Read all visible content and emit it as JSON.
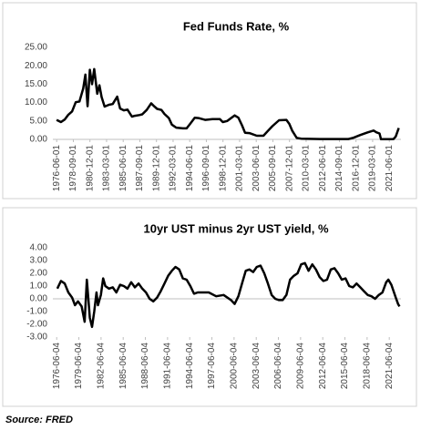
{
  "chart_data": [
    {
      "type": "line",
      "title": "Fed Funds Rate, %",
      "color": "#000000",
      "grid": false,
      "x": [
        1976.4,
        1977.0,
        1977.5,
        1978.0,
        1978.5,
        1979.0,
        1979.5,
        1980.0,
        1980.3,
        1980.6,
        1980.9,
        1981.2,
        1981.5,
        1981.9,
        1982.2,
        1982.5,
        1982.9,
        1983.5,
        1984.0,
        1984.6,
        1985.0,
        1985.5,
        1986.0,
        1986.6,
        1987.0,
        1987.6,
        1988.0,
        1988.6,
        1989.2,
        1989.6,
        1990.0,
        1990.6,
        1991.0,
        1991.6,
        1992.0,
        1992.6,
        1993.5,
        1994.0,
        1994.5,
        1995.1,
        1995.6,
        1996.5,
        1997.5,
        1998.5,
        1998.9,
        1999.5,
        2000.5,
        2001.0,
        2001.5,
        2001.9,
        2002.5,
        2003.5,
        2004.4,
        2005.0,
        2005.6,
        2006.5,
        2007.5,
        2007.9,
        2008.3,
        2008.9,
        2009.5,
        2012.0,
        2015.9,
        2016.5,
        2017.5,
        2018.5,
        2019.3,
        2019.7,
        2020.1,
        2020.3,
        2021.5,
        2022.0,
        2022.3,
        2022.7
      ],
      "values": [
        5.3,
        4.7,
        5.4,
        6.7,
        7.6,
        10.1,
        10.3,
        13.8,
        17.6,
        9.0,
        18.9,
        15.0,
        19.1,
        12.4,
        14.7,
        11.5,
        8.9,
        9.4,
        9.6,
        11.6,
        8.4,
        7.9,
        8.1,
        6.2,
        6.4,
        6.6,
        6.8,
        8.0,
        9.8,
        9.0,
        8.3,
        8.0,
        6.9,
        5.8,
        4.0,
        3.2,
        3.0,
        3.0,
        4.3,
        5.9,
        5.8,
        5.3,
        5.5,
        5.5,
        4.7,
        5.0,
        6.5,
        5.9,
        3.8,
        1.8,
        1.7,
        1.0,
        1.0,
        2.3,
        3.6,
        5.2,
        5.3,
        4.2,
        2.3,
        0.4,
        0.2,
        0.1,
        0.1,
        0.4,
        1.2,
        1.9,
        2.4,
        1.9,
        1.6,
        0.05,
        0.08,
        0.1,
        0.8,
        3.1
      ],
      "xlim": [
        1975.9,
        2023.0
      ],
      "xticks": [
        {
          "value": 1976.42,
          "label": "1976-06-01"
        },
        {
          "value": 1978.67,
          "label": "1978-09-01"
        },
        {
          "value": 1980.92,
          "label": "1980-12-01"
        },
        {
          "value": 1983.17,
          "label": "1983-03-01"
        },
        {
          "value": 1985.42,
          "label": "1985-06-01"
        },
        {
          "value": 1987.67,
          "label": "1987-09-01"
        },
        {
          "value": 1989.92,
          "label": "1989-12-01"
        },
        {
          "value": 1992.17,
          "label": "1992-03-01"
        },
        {
          "value": 1994.42,
          "label": "1994-06-01"
        },
        {
          "value": 1996.67,
          "label": "1996-09-01"
        },
        {
          "value": 1998.92,
          "label": "1998-12-01"
        },
        {
          "value": 2001.17,
          "label": "2001-03-01"
        },
        {
          "value": 2003.42,
          "label": "2003-06-01"
        },
        {
          "value": 2005.67,
          "label": "2005-09-01"
        },
        {
          "value": 2007.92,
          "label": "2007-12-01"
        },
        {
          "value": 2010.17,
          "label": "2010-03-01"
        },
        {
          "value": 2012.42,
          "label": "2012-06-01"
        },
        {
          "value": 2014.67,
          "label": "2014-09-01"
        },
        {
          "value": 2016.92,
          "label": "2016-12-01"
        },
        {
          "value": 2019.17,
          "label": "2019-03-01"
        },
        {
          "value": 2021.42,
          "label": "2021-06-01"
        }
      ],
      "ylim": [
        0,
        25
      ],
      "yticks": [
        {
          "value": 0,
          "label": "0.00"
        },
        {
          "value": 5,
          "label": "5.00"
        },
        {
          "value": 10,
          "label": "10.00"
        },
        {
          "value": 15,
          "label": "15.00"
        },
        {
          "value": 20,
          "label": "20.00"
        },
        {
          "value": 25,
          "label": "25.00"
        }
      ]
    },
    {
      "type": "line",
      "title": "10yr UST minus 2yr UST yield, %",
      "color": "#000000",
      "grid": false,
      "x": [
        1976.5,
        1977.0,
        1977.5,
        1978.0,
        1978.5,
        1978.9,
        1979.3,
        1979.8,
        1980.2,
        1980.5,
        1980.9,
        1981.2,
        1981.5,
        1981.8,
        1982.0,
        1982.4,
        1982.7,
        1983.0,
        1983.5,
        1984.0,
        1984.5,
        1985.0,
        1985.5,
        1986.0,
        1986.5,
        1987.0,
        1987.5,
        1988.0,
        1988.5,
        1989.0,
        1989.5,
        1990.0,
        1990.5,
        1991.0,
        1991.5,
        1992.0,
        1992.5,
        1993.0,
        1993.5,
        1994.0,
        1994.5,
        1995.0,
        1995.5,
        1996.0,
        1997.0,
        1998.0,
        1999.0,
        2000.0,
        2000.5,
        2001.0,
        2001.5,
        2002.0,
        2002.5,
        2003.0,
        2003.5,
        2004.0,
        2004.5,
        2005.0,
        2005.5,
        2006.0,
        2006.5,
        2007.0,
        2007.5,
        2008.0,
        2008.5,
        2009.0,
        2009.5,
        2010.0,
        2010.5,
        2011.0,
        2011.5,
        2012.0,
        2012.5,
        2013.0,
        2013.5,
        2014.0,
        2014.5,
        2015.0,
        2015.5,
        2016.0,
        2016.5,
        2017.0,
        2017.5,
        2018.0,
        2018.5,
        2019.0,
        2019.5,
        2020.0,
        2020.5,
        2021.0,
        2021.3,
        2021.7,
        2022.0,
        2022.3,
        2022.6,
        2022.8
      ],
      "values": [
        0.8,
        1.4,
        1.2,
        0.5,
        0.1,
        -0.5,
        -0.2,
        -0.6,
        -1.8,
        1.5,
        -1.5,
        -2.2,
        -1.0,
        0.5,
        -0.5,
        0.3,
        1.6,
        1.0,
        0.8,
        0.9,
        0.5,
        1.1,
        1.0,
        0.8,
        1.3,
        0.9,
        1.2,
        0.8,
        0.5,
        0.0,
        -0.2,
        0.1,
        0.6,
        1.2,
        1.8,
        2.2,
        2.5,
        2.3,
        1.6,
        1.5,
        1.0,
        0.4,
        0.5,
        0.5,
        0.5,
        0.2,
        0.3,
        -0.1,
        -0.4,
        0.2,
        1.2,
        2.2,
        2.3,
        2.1,
        2.5,
        2.6,
        2.0,
        1.2,
        0.3,
        0.0,
        -0.1,
        -0.1,
        0.3,
        1.5,
        1.8,
        2.0,
        2.7,
        2.8,
        2.2,
        2.7,
        2.3,
        1.7,
        1.4,
        1.5,
        2.3,
        2.4,
        2.0,
        1.5,
        1.6,
        1.0,
        0.9,
        1.2,
        0.9,
        0.6,
        0.3,
        0.2,
        0.0,
        0.3,
        0.5,
        1.3,
        1.5,
        1.1,
        0.6,
        0.1,
        -0.4,
        -0.6
      ],
      "xlim": [
        1975.9,
        2023.0
      ],
      "xticks": [
        {
          "value": 1976.42,
          "label": "1976-06-04"
        },
        {
          "value": 1979.42,
          "label": "1979-06-04"
        },
        {
          "value": 1982.42,
          "label": "1982-06-04"
        },
        {
          "value": 1985.42,
          "label": "1985-06-04"
        },
        {
          "value": 1988.42,
          "label": "1988-06-04"
        },
        {
          "value": 1991.42,
          "label": "1991-06-04"
        },
        {
          "value": 1994.42,
          "label": "1994-06-04"
        },
        {
          "value": 1997.42,
          "label": "1997-06-04"
        },
        {
          "value": 2000.42,
          "label": "2000-06-04"
        },
        {
          "value": 2003.42,
          "label": "2003-06-04"
        },
        {
          "value": 2006.42,
          "label": "2006-06-04"
        },
        {
          "value": 2009.42,
          "label": "2009-06-04"
        },
        {
          "value": 2012.42,
          "label": "2012-06-04"
        },
        {
          "value": 2015.42,
          "label": "2015-06-04"
        },
        {
          "value": 2018.42,
          "label": "2018-06-04"
        },
        {
          "value": 2021.42,
          "label": "2021-06-04"
        }
      ],
      "ylim": [
        -3,
        4
      ],
      "yticks": [
        {
          "value": 4,
          "label": "4.00"
        },
        {
          "value": 3,
          "label": "3.00"
        },
        {
          "value": 2,
          "label": "2.00"
        },
        {
          "value": 1,
          "label": "1.00"
        },
        {
          "value": 0,
          "label": "0.00"
        },
        {
          "value": -1,
          "label": "-1.00"
        },
        {
          "value": -2,
          "label": "-2.00"
        },
        {
          "value": -3,
          "label": "-3.00"
        }
      ]
    }
  ],
  "footer": {
    "source": "Source: FRED"
  }
}
